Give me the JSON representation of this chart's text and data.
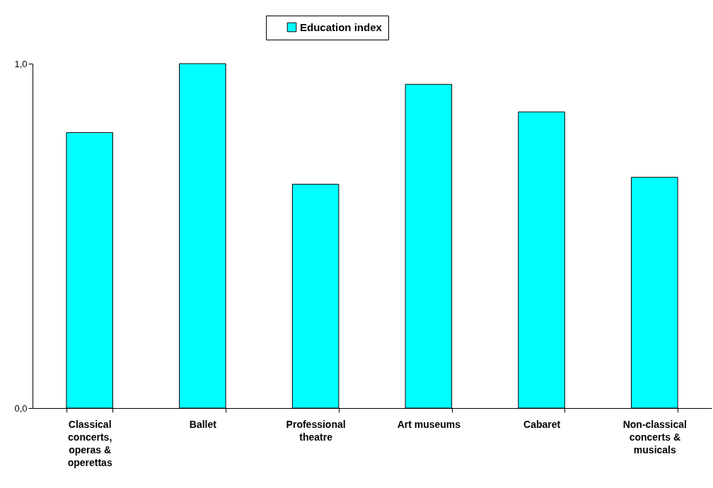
{
  "chart_data": {
    "type": "bar",
    "categories": [
      "Classical concerts, operas & operettas",
      "Ballet",
      "Professional theatre",
      "Art museums",
      "Cabaret",
      "Non-classical concerts & musicals"
    ],
    "series": [
      {
        "name": "Education index",
        "color": "#00ffff",
        "values": [
          0.8,
          1.0,
          0.65,
          0.94,
          0.86,
          0.67
        ]
      }
    ],
    "ylim": [
      0,
      1
    ],
    "yticks": [
      {
        "value": 0,
        "label": "0,0"
      },
      {
        "value": 1,
        "label": "1,0"
      }
    ],
    "grid": false,
    "legend": "top"
  }
}
